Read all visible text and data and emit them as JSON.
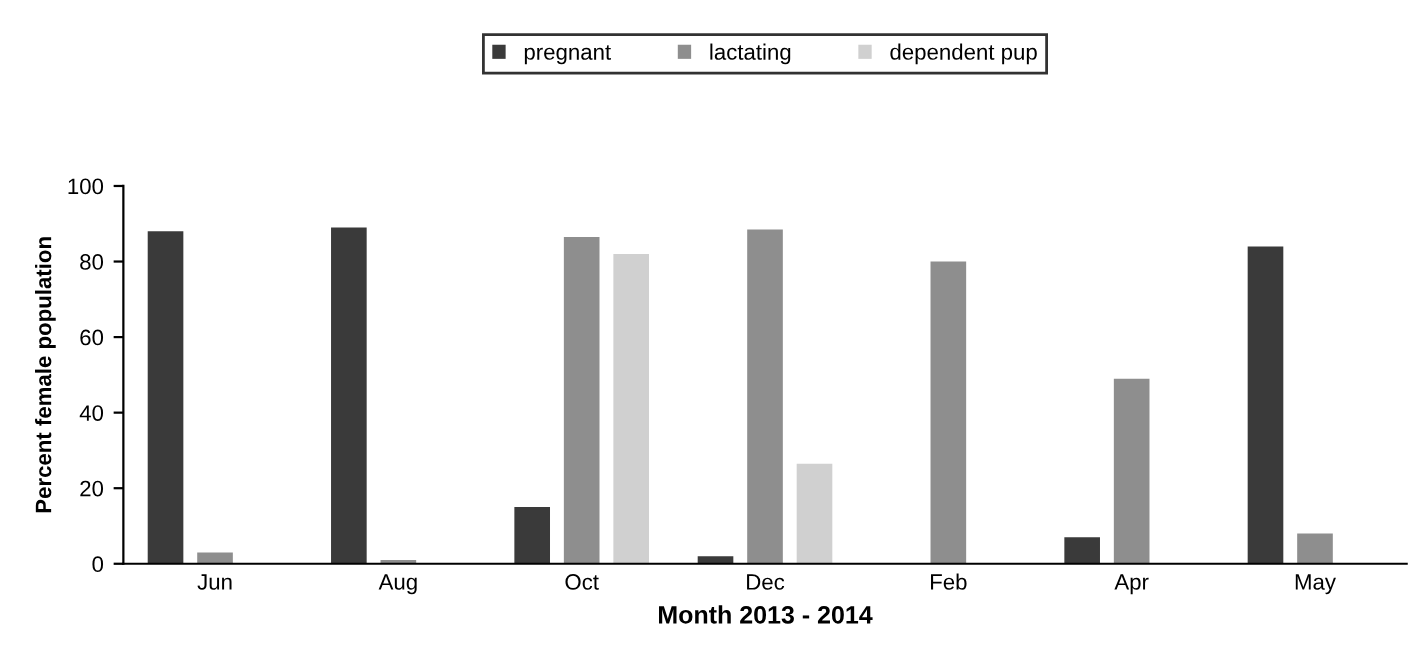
{
  "chart_data": {
    "type": "bar",
    "xlabel": "Month 2013 - 2014",
    "ylabel": "Percent female population",
    "categories": [
      "Jun",
      "Aug",
      "Oct",
      "Dec",
      "Feb",
      "Apr",
      "May"
    ],
    "series": [
      {
        "name": "pregnant",
        "color": "#3a3a3a",
        "values": [
          88,
          89,
          15,
          2,
          null,
          7,
          84
        ]
      },
      {
        "name": "lactating",
        "color": "#8e8e8e",
        "values": [
          3,
          1,
          86.5,
          88.5,
          80,
          49,
          8
        ]
      },
      {
        "name": "dependent pup",
        "color": "#d0d0d0",
        "values": [
          null,
          null,
          82,
          26.5,
          null,
          null,
          null
        ]
      }
    ],
    "ylim": [
      0,
      100
    ],
    "yticks": [
      0,
      20,
      40,
      60,
      80,
      100
    ],
    "grid": false,
    "legend": "top"
  }
}
